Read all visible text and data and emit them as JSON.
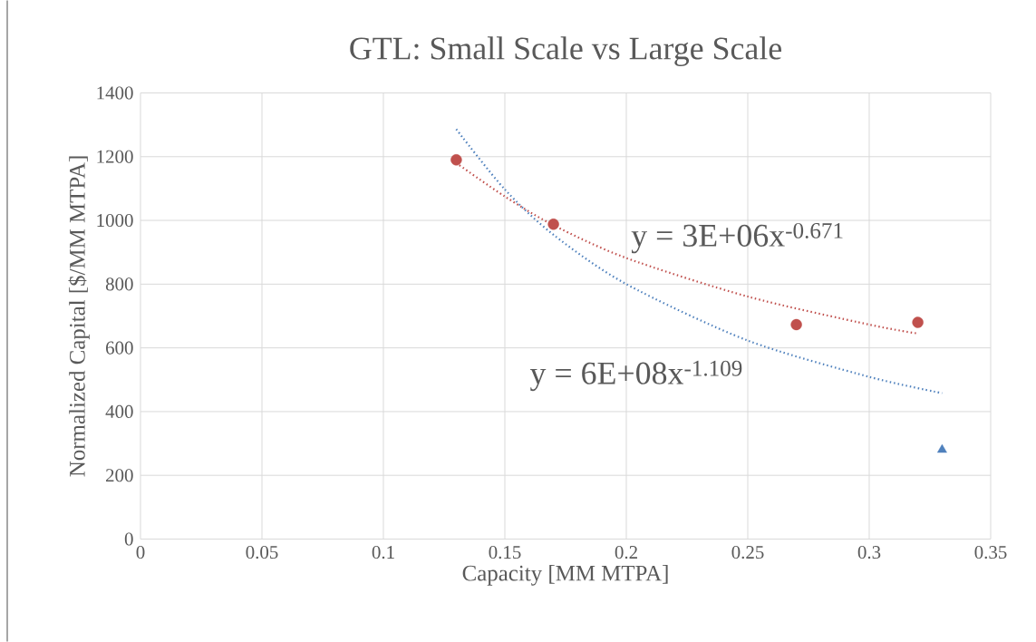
{
  "chart_data": {
    "type": "scatter",
    "title": "GTL: Small Scale vs Large Scale",
    "xlabel": "Capacity [MM MTPA]",
    "ylabel": "Normalized Capital [$/MM MTPA]",
    "series": [
      {
        "color": "#c0504d",
        "marker": "circle",
        "x": [
          0.13,
          0.17,
          0.27,
          0.32
        ],
        "values": [
          1190,
          988,
          673,
          680
        ]
      },
      {
        "color": "#4f81bd",
        "marker": "triangle",
        "x": [
          0.33
        ],
        "values": [
          280
        ]
      },
      {
        "type": "line",
        "color": "#c0504d",
        "line_style": "dotted",
        "x": [
          0.13,
          0.15,
          0.17,
          0.2,
          0.25,
          0.3,
          0.32
        ],
        "values": [
          1180,
          1075,
          985,
          882,
          761,
          673,
          645
        ]
      },
      {
        "type": "line",
        "color": "#4f81bd",
        "line_style": "dotted",
        "x": [
          0.13,
          0.15,
          0.17,
          0.2,
          0.25,
          0.3,
          0.33
        ],
        "values": [
          1286,
          1097,
          955,
          800,
          623,
          509,
          458
        ]
      }
    ],
    "annotations": [
      "y = 3E+06x$^{-0.671}$",
      "y = 6E+08x$^{-1.109}$"
    ],
    "xlim": [
      0,
      0.35
    ],
    "xticks": [
      0,
      0.05,
      0.1,
      0.15,
      0.2,
      0.25,
      0.3,
      0.35
    ],
    "ylim": [
      0,
      1400
    ],
    "yticks": [
      0,
      200,
      400,
      600,
      800,
      1000,
      1200,
      1400
    ],
    "grid": true
  }
}
